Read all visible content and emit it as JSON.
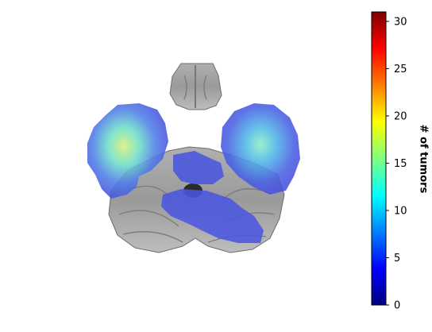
{
  "colorbar": {
    "label": "# of tumors",
    "min": 0,
    "max": 31,
    "ticks": [
      {
        "value": 0,
        "label": "0"
      },
      {
        "value": 5,
        "label": "5"
      },
      {
        "value": 10,
        "label": "10"
      },
      {
        "value": 15,
        "label": "15"
      },
      {
        "value": 20,
        "label": "20"
      },
      {
        "value": 25,
        "label": "25"
      },
      {
        "value": 30,
        "label": "30"
      }
    ],
    "colormap": [
      "#00007f",
      "#0000ff",
      "#007fff",
      "#00ffff",
      "#7fff7f",
      "#ffff00",
      "#ff7f00",
      "#ff0000",
      "#7f0000"
    ]
  },
  "colors": {
    "brain_gray": "#8a8a8a",
    "brain_light": "#c8c8c8",
    "overlay_blue": "#4a56e0",
    "hot_cyan": "#55e6d2",
    "hot_yellow": "#d8f07a"
  }
}
